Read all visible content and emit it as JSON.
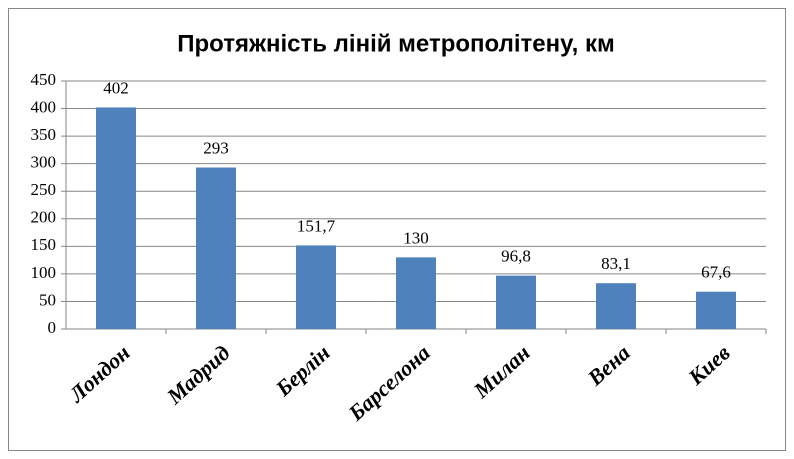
{
  "chart_data": {
    "type": "bar",
    "title": "Протяжність ліній метрополітену, км",
    "categories": [
      "Лондон",
      "Мадрид",
      "Берлін",
      "Барселона",
      "Милан",
      "Вена",
      "Киев"
    ],
    "values": [
      402,
      293,
      151.7,
      130,
      96.8,
      83.1,
      67.6
    ],
    "value_labels": [
      "402",
      "293",
      "151,7",
      "130",
      "96,8",
      "83,1",
      "67,6"
    ],
    "color": "#4f81bd",
    "ylim": [
      0,
      450
    ],
    "yticks": [
      0,
      50,
      100,
      150,
      200,
      250,
      300,
      350,
      400,
      450
    ],
    "grid": true
  }
}
